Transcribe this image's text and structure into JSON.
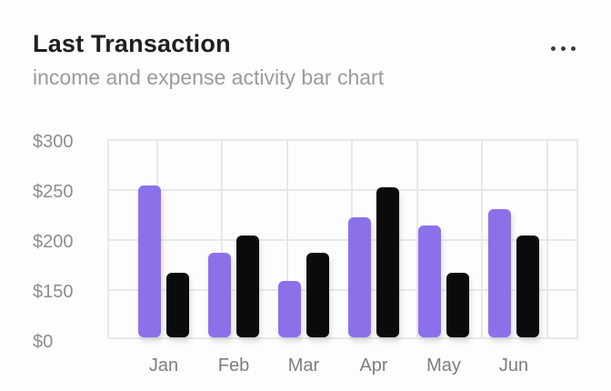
{
  "header": {
    "title": "Last Transaction",
    "subtitle": "income and expense activity bar chart",
    "menu_icon": "horizontal-ellipsis"
  },
  "colors": {
    "background": "#FDFDFD",
    "income_bar": "#8C70EA",
    "expense_bar": "#0B0B0D",
    "gridline": "#E8E8E8",
    "title_text": "#1F1F1F",
    "subtitle_text": "#9B9B9B",
    "axis_text": "#8D8D8D"
  },
  "chart_data": {
    "type": "bar",
    "title": "Last Transaction",
    "subtitle": "income and expense activity bar chart",
    "categories": [
      "Jan",
      "Feb",
      "Mar",
      "Apr",
      "May",
      "Jun"
    ],
    "series": [
      {
        "name": "income",
        "color": "#8C70EA",
        "values": [
          252,
          185,
          156,
          220,
          212,
          228
        ]
      },
      {
        "name": "expense",
        "color": "#0B0B0D",
        "values": [
          165,
          202,
          185,
          250,
          165,
          202
        ]
      }
    ],
    "xlabel": "",
    "ylabel": "",
    "y_ticks": [
      "$300",
      "$250",
      "$200",
      "$150",
      "$0"
    ],
    "y_tick_values": [
      300,
      250,
      200,
      150,
      0
    ],
    "grid": true,
    "legend": false
  }
}
